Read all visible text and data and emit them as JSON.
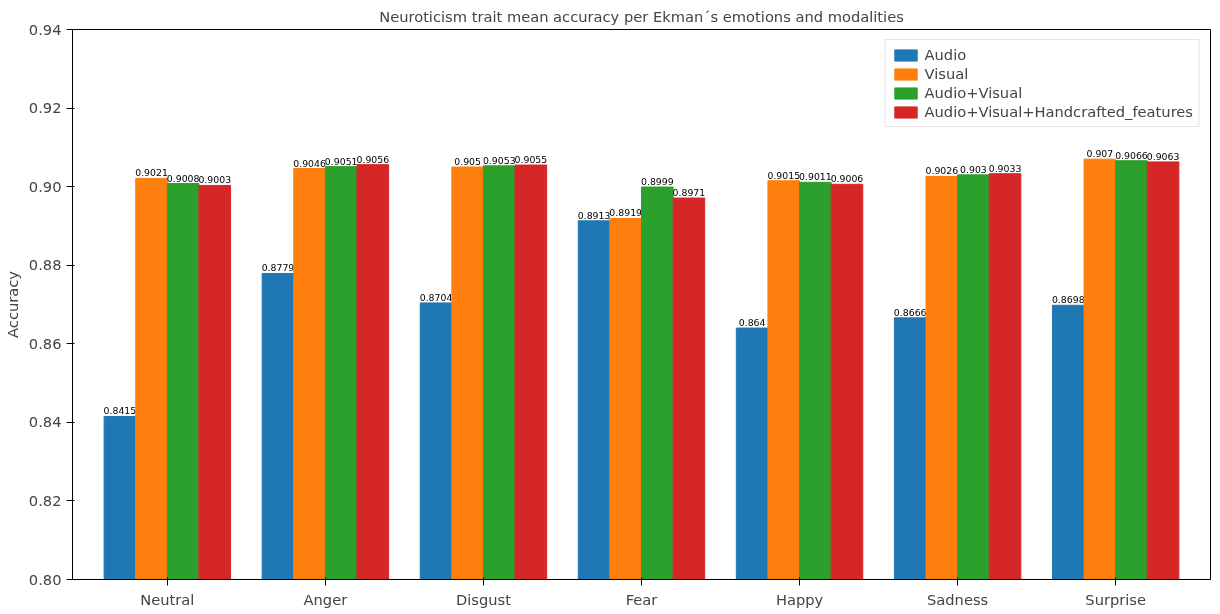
{
  "chart_data": {
    "type": "bar",
    "title": "Neuroticism trait mean accuracy per Ekman´s emotions and modalities",
    "ylabel": "Accuracy",
    "categories": [
      "Neutral",
      "Anger",
      "Disgust",
      "Fear",
      "Happy",
      "Sadness",
      "Surprise"
    ],
    "series": [
      {
        "name": "Audio",
        "color": "#1f77b4",
        "values": [
          0.8415,
          0.8779,
          0.8704,
          0.8913,
          0.864,
          0.8666,
          0.8698
        ]
      },
      {
        "name": "Visual",
        "color": "#ff7f0e",
        "values": [
          0.9021,
          0.9046,
          0.905,
          0.8919,
          0.9015,
          0.9026,
          0.907
        ]
      },
      {
        "name": "Audio+Visual",
        "color": "#2ca02c",
        "values": [
          0.9008,
          0.9051,
          0.9053,
          0.8999,
          0.9011,
          0.903,
          0.9066
        ]
      },
      {
        "name": "Audio+Visual+Handcrafted_features",
        "color": "#d62728",
        "values": [
          0.9003,
          0.9056,
          0.9055,
          0.8971,
          0.9006,
          0.9033,
          0.9063
        ]
      }
    ],
    "ylim": [
      0.8,
      0.94
    ],
    "yticks": [
      {
        "value": 0.8,
        "label": "0.80"
      },
      {
        "value": 0.82,
        "label": "0.82"
      },
      {
        "value": 0.84,
        "label": "0.84"
      },
      {
        "value": 0.86,
        "label": "0.86"
      },
      {
        "value": 0.88,
        "label": "0.88"
      },
      {
        "value": 0.9,
        "label": "0.90"
      },
      {
        "value": 0.92,
        "label": "0.92"
      },
      {
        "value": 0.94,
        "label": "0.94"
      }
    ],
    "grid": false,
    "legend": "top right",
    "data_labels": true
  }
}
